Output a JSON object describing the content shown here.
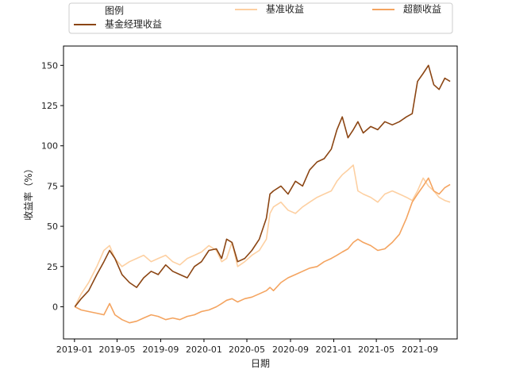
{
  "chart_data": {
    "type": "line",
    "xlabel": "日期",
    "ylabel": "收益率（%）",
    "legend": {
      "title": "图例",
      "placement": "top-center-outside",
      "entries": [
        "基金经理收益",
        "基准收益",
        "超额收益"
      ]
    },
    "x_range": [
      "2018-12-01",
      "2021-12-15"
    ],
    "y_range": [
      -20,
      162
    ],
    "x_ticks": [
      "2019-01",
      "2019-05",
      "2019-09",
      "2020-01",
      "2020-05",
      "2020-09",
      "2021-01",
      "2021-05",
      "2021-09"
    ],
    "y_ticks": [
      0,
      25,
      50,
      75,
      100,
      125,
      150
    ],
    "grid": false,
    "series": [
      {
        "name": "基金经理收益",
        "color": "#8b4513",
        "x": [
          "2019-01-02",
          "2019-01-20",
          "2019-02-10",
          "2019-03-05",
          "2019-03-25",
          "2019-04-10",
          "2019-04-25",
          "2019-05-15",
          "2019-06-05",
          "2019-06-25",
          "2019-07-15",
          "2019-08-05",
          "2019-08-25",
          "2019-09-15",
          "2019-10-05",
          "2019-10-25",
          "2019-11-15",
          "2019-12-05",
          "2019-12-25",
          "2020-01-15",
          "2020-02-05",
          "2020-02-20",
          "2020-03-05",
          "2020-03-20",
          "2020-04-05",
          "2020-04-25",
          "2020-05-15",
          "2020-06-05",
          "2020-06-25",
          "2020-07-05",
          "2020-07-15",
          "2020-08-05",
          "2020-08-25",
          "2020-09-15",
          "2020-10-05",
          "2020-10-25",
          "2020-11-15",
          "2020-12-05",
          "2020-12-25",
          "2021-01-10",
          "2021-01-25",
          "2021-02-10",
          "2021-02-25",
          "2021-03-10",
          "2021-03-25",
          "2021-04-15",
          "2021-05-05",
          "2021-05-25",
          "2021-06-15",
          "2021-07-05",
          "2021-07-25",
          "2021-08-10",
          "2021-08-25",
          "2021-09-10",
          "2021-09-25",
          "2021-10-10",
          "2021-10-25",
          "2021-11-10",
          "2021-11-25"
        ],
        "y": [
          0,
          5,
          10,
          20,
          28,
          35,
          30,
          20,
          15,
          12,
          18,
          22,
          20,
          26,
          22,
          20,
          18,
          25,
          28,
          35,
          36,
          30,
          42,
          40,
          28,
          30,
          35,
          42,
          55,
          70,
          72,
          75,
          70,
          78,
          75,
          85,
          90,
          92,
          98,
          110,
          118,
          105,
          110,
          115,
          108,
          112,
          110,
          115,
          113,
          115,
          118,
          120,
          140,
          145,
          150,
          138,
          135,
          142,
          140
        ]
      },
      {
        "name": "基准收益",
        "color": "#fdd0a2",
        "x": [
          "2019-01-02",
          "2019-01-20",
          "2019-02-10",
          "2019-03-05",
          "2019-03-25",
          "2019-04-10",
          "2019-04-25",
          "2019-05-15",
          "2019-06-05",
          "2019-06-25",
          "2019-07-15",
          "2019-08-05",
          "2019-08-25",
          "2019-09-15",
          "2019-10-05",
          "2019-10-25",
          "2019-11-15",
          "2019-12-05",
          "2019-12-25",
          "2020-01-15",
          "2020-02-05",
          "2020-02-20",
          "2020-03-05",
          "2020-03-20",
          "2020-04-05",
          "2020-04-25",
          "2020-05-15",
          "2020-06-05",
          "2020-06-25",
          "2020-07-05",
          "2020-07-15",
          "2020-08-05",
          "2020-08-25",
          "2020-09-15",
          "2020-10-05",
          "2020-10-25",
          "2020-11-15",
          "2020-12-05",
          "2020-12-25",
          "2021-01-10",
          "2021-01-25",
          "2021-02-10",
          "2021-02-25",
          "2021-03-10",
          "2021-03-25",
          "2021-04-15",
          "2021-05-05",
          "2021-05-25",
          "2021-06-15",
          "2021-07-05",
          "2021-07-25",
          "2021-08-10",
          "2021-08-25",
          "2021-09-10",
          "2021-09-25",
          "2021-10-10",
          "2021-10-25",
          "2021-11-10",
          "2021-11-25"
        ],
        "y": [
          0,
          8,
          15,
          25,
          35,
          38,
          30,
          25,
          28,
          30,
          32,
          28,
          30,
          32,
          28,
          26,
          30,
          32,
          34,
          38,
          35,
          28,
          30,
          40,
          25,
          28,
          32,
          35,
          42,
          58,
          62,
          65,
          60,
          58,
          62,
          65,
          68,
          70,
          72,
          78,
          82,
          85,
          88,
          72,
          70,
          68,
          65,
          70,
          72,
          70,
          68,
          66,
          72,
          80,
          75,
          72,
          68,
          66,
          65
        ]
      },
      {
        "name": "超额收益",
        "color": "#f4a460",
        "x": [
          "2019-01-02",
          "2019-01-20",
          "2019-02-10",
          "2019-03-05",
          "2019-03-25",
          "2019-04-10",
          "2019-04-25",
          "2019-05-15",
          "2019-06-05",
          "2019-06-25",
          "2019-07-15",
          "2019-08-05",
          "2019-08-25",
          "2019-09-15",
          "2019-10-05",
          "2019-10-25",
          "2019-11-15",
          "2019-12-05",
          "2019-12-25",
          "2020-01-15",
          "2020-02-05",
          "2020-02-20",
          "2020-03-05",
          "2020-03-20",
          "2020-04-05",
          "2020-04-25",
          "2020-05-15",
          "2020-06-05",
          "2020-06-25",
          "2020-07-05",
          "2020-07-15",
          "2020-08-05",
          "2020-08-25",
          "2020-09-15",
          "2020-10-05",
          "2020-10-25",
          "2020-11-15",
          "2020-12-05",
          "2020-12-25",
          "2021-01-10",
          "2021-01-25",
          "2021-02-10",
          "2021-02-25",
          "2021-03-10",
          "2021-03-25",
          "2021-04-15",
          "2021-05-05",
          "2021-05-25",
          "2021-06-15",
          "2021-07-05",
          "2021-07-25",
          "2021-08-10",
          "2021-08-25",
          "2021-09-10",
          "2021-09-25",
          "2021-10-10",
          "2021-10-25",
          "2021-11-10",
          "2021-11-25"
        ],
        "y": [
          0,
          -2,
          -3,
          -4,
          -5,
          2,
          -5,
          -8,
          -10,
          -9,
          -7,
          -5,
          -6,
          -8,
          -7,
          -8,
          -6,
          -5,
          -3,
          -2,
          0,
          2,
          4,
          5,
          3,
          5,
          6,
          8,
          10,
          12,
          10,
          15,
          18,
          20,
          22,
          24,
          25,
          28,
          30,
          32,
          34,
          36,
          40,
          42,
          40,
          38,
          35,
          36,
          40,
          45,
          55,
          65,
          70,
          75,
          80,
          72,
          70,
          74,
          76
        ]
      }
    ]
  }
}
